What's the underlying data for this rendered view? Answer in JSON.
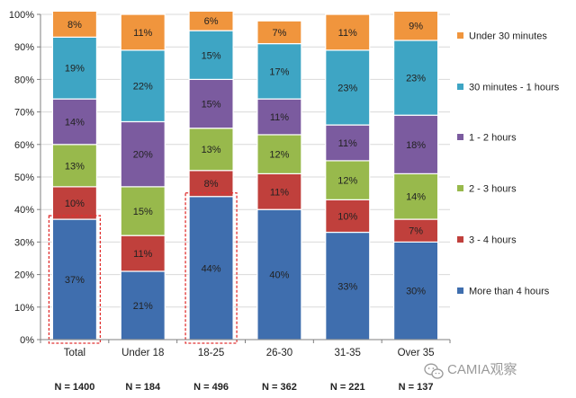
{
  "chart_data": {
    "type": "stacked-bar-100",
    "ylim": [
      0,
      100
    ],
    "y_ticks": [
      "0%",
      "10%",
      "20%",
      "30%",
      "40%",
      "50%",
      "60%",
      "70%",
      "80%",
      "90%",
      "100%"
    ],
    "categories": [
      "Total",
      "Under 18",
      "18-25",
      "26-30",
      "31-35",
      "Over 35"
    ],
    "sample_sizes": [
      "N = 1400",
      "N = 184",
      "N = 496",
      "N = 362",
      "N = 221",
      "N = 137"
    ],
    "series": [
      {
        "name": "More than 4 hours",
        "color": "#3f6eae",
        "values": [
          37,
          21,
          44,
          40,
          33,
          30
        ]
      },
      {
        "name": "3 - 4 hours",
        "color": "#c0403c",
        "values": [
          10,
          11,
          8,
          11,
          10,
          7
        ]
      },
      {
        "name": "2 - 3 hours",
        "color": "#98b94c",
        "values": [
          13,
          15,
          13,
          12,
          12,
          14
        ]
      },
      {
        "name": "1 - 2 hours",
        "color": "#7b5b9f",
        "values": [
          14,
          20,
          15,
          11,
          11,
          18
        ]
      },
      {
        "name": "30 minutes - 1 hours",
        "color": "#3ea5c4",
        "values": [
          19,
          22,
          15,
          17,
          23,
          23
        ]
      },
      {
        "name": "Under 30 minutes",
        "color": "#f0953d",
        "values": [
          8,
          11,
          6,
          7,
          11,
          9
        ]
      }
    ],
    "highlighted_categories": [
      "Total",
      "18-25"
    ],
    "highlight_color": "#e03030",
    "legend_position": "right"
  },
  "watermark": {
    "text": "CAMIA观察"
  }
}
